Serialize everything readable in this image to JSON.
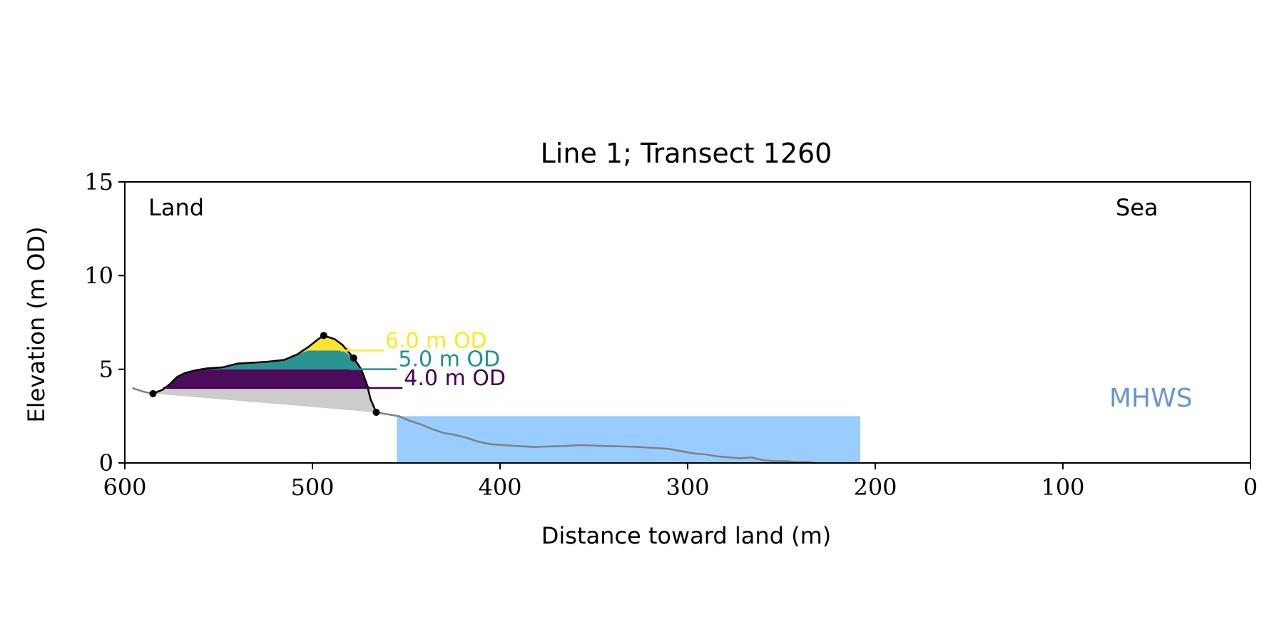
{
  "chart_data": {
    "type": "area",
    "title": "Line 1; Transect 1260",
    "xlabel": "Distance toward land (m)",
    "ylabel": "Elevation (m OD)",
    "xlim": [
      600,
      0
    ],
    "ylim": [
      0,
      15
    ],
    "x_ticks": [
      "600",
      "500",
      "400",
      "300",
      "200",
      "100",
      "0"
    ],
    "y_ticks": [
      "0",
      "5",
      "10",
      "15"
    ],
    "grid": false,
    "annotations": {
      "land": "Land",
      "sea": "Sea",
      "mhws": "MHWS"
    },
    "colors": {
      "profile_full": "#808080",
      "dune_outline": "#000000",
      "dune_base_fill": "#cccccc",
      "mhws_fill": "#99ccff",
      "mhws_text": "#6699cc",
      "band_4": "#440154",
      "band_5": "#21918c",
      "band_6": "#fde725"
    },
    "mhws": {
      "level": 2.5,
      "x_range": [
        455,
        208
      ]
    },
    "levels": [
      {
        "label": "4.0 m OD",
        "elevation": 4.0,
        "color": "#440154",
        "line_x": [
          578,
          452
        ]
      },
      {
        "label": "5.0 m OD",
        "elevation": 5.0,
        "color": "#21918c",
        "line_x": [
          480,
          455
        ]
      },
      {
        "label": "6.0 m OD",
        "elevation": 6.0,
        "color": "#fde725",
        "line_x": [
          485,
          462
        ]
      }
    ],
    "dune_points": [
      {
        "x": 585,
        "y": 3.7
      },
      {
        "x": 494,
        "y": 6.8
      },
      {
        "x": 478,
        "y": 5.6
      },
      {
        "x": 466,
        "y": 2.7
      }
    ],
    "profile": [
      [
        596,
        4.0
      ],
      [
        590,
        3.8
      ],
      [
        585,
        3.7
      ],
      [
        580,
        3.9
      ],
      [
        576,
        4.2
      ],
      [
        572,
        4.6
      ],
      [
        568,
        4.8
      ],
      [
        562,
        4.95
      ],
      [
        556,
        5.05
      ],
      [
        548,
        5.1
      ],
      [
        540,
        5.3
      ],
      [
        532,
        5.35
      ],
      [
        524,
        5.4
      ],
      [
        515,
        5.5
      ],
      [
        508,
        5.8
      ],
      [
        502,
        6.2
      ],
      [
        497,
        6.6
      ],
      [
        494,
        6.8
      ],
      [
        488,
        6.6
      ],
      [
        484,
        6.3
      ],
      [
        478,
        5.6
      ],
      [
        474,
        5.0
      ],
      [
        471,
        4.2
      ],
      [
        469,
        3.4
      ],
      [
        466,
        2.7
      ],
      [
        460,
        2.6
      ],
      [
        454,
        2.5
      ],
      [
        448,
        2.25
      ],
      [
        442,
        2.05
      ],
      [
        436,
        1.8
      ],
      [
        430,
        1.6
      ],
      [
        424,
        1.5
      ],
      [
        418,
        1.35
      ],
      [
        412,
        1.15
      ],
      [
        405,
        1.0
      ],
      [
        398,
        0.95
      ],
      [
        390,
        0.9
      ],
      [
        382,
        0.85
      ],
      [
        374,
        0.88
      ],
      [
        366,
        0.9
      ],
      [
        358,
        0.95
      ],
      [
        350,
        0.93
      ],
      [
        342,
        0.9
      ],
      [
        334,
        0.88
      ],
      [
        326,
        0.85
      ],
      [
        318,
        0.8
      ],
      [
        310,
        0.75
      ],
      [
        302,
        0.6
      ],
      [
        296,
        0.5
      ],
      [
        290,
        0.45
      ],
      [
        284,
        0.35
      ],
      [
        278,
        0.3
      ],
      [
        272,
        0.25
      ],
      [
        266,
        0.3
      ],
      [
        260,
        0.15
      ],
      [
        254,
        0.1
      ],
      [
        248,
        0.1
      ],
      [
        242,
        0.05
      ],
      [
        236,
        0.05
      ],
      [
        232,
        0.0
      ]
    ]
  }
}
